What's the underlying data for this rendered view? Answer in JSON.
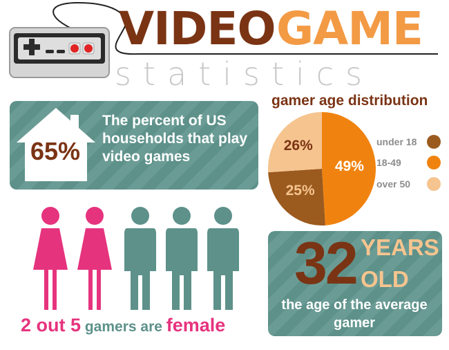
{
  "header": {
    "title_part1": "VIDEO",
    "title_part2": "GAME",
    "subtitle": "statistics"
  },
  "households": {
    "percent": "65%",
    "text": "The percent of US households that play video games"
  },
  "chart_data": {
    "type": "pie",
    "title": "gamer age distribution",
    "categories": [
      "under 18",
      "18-49",
      "over 50"
    ],
    "values": [
      25,
      49,
      26
    ],
    "value_labels": [
      "25%",
      "49%",
      "26%"
    ],
    "colors": [
      "#9b5a1e",
      "#f0830f",
      "#f6c48f"
    ],
    "legend_placement": "right"
  },
  "gender": {
    "count_text": "2 out 5",
    "middle_text": " gamers are ",
    "female_text": "female",
    "female_count": 2,
    "total_count": 5,
    "female_color": "#e6337e",
    "male_color": "#5d918a"
  },
  "age": {
    "number": "32",
    "years": "YEARS",
    "old": "OLD",
    "caption": "the age of the average gamer"
  },
  "colors": {
    "brand_brown": "#7a3414",
    "brand_orange": "#f39a45",
    "teal": "#5d918a",
    "pink": "#e6337e"
  },
  "icons": [
    "game-controller-icon",
    "house-icon",
    "female-person-icon",
    "male-person-icon"
  ]
}
